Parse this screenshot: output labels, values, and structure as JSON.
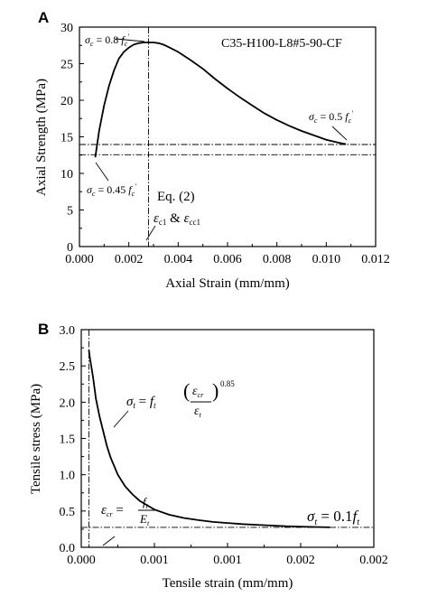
{
  "chart_data": [
    {
      "panel_letter": "A",
      "type": "line",
      "title": "C35-H100-L8#5-90-CF",
      "xlabel": "Axial Strain (mm/mm)",
      "ylabel": "Axial Strength (MPa)",
      "xlim": [
        0,
        0.012
      ],
      "ylim": [
        0,
        30
      ],
      "xticks": [
        "0.000",
        "0.002",
        "0.004",
        "0.006",
        "0.008",
        "0.010",
        "0.012"
      ],
      "yticks": [
        "0",
        "5",
        "10",
        "15",
        "20",
        "25",
        "30"
      ],
      "grid": false,
      "series": [
        {
          "x": [
            0.00064,
            0.0008,
            0.001,
            0.0012,
            0.0014,
            0.0016,
            0.0018,
            0.002,
            0.0022,
            0.0024,
            0.0026,
            0.0028,
            0.003,
            0.0032,
            0.0034,
            0.0036,
            0.004,
            0.0045,
            0.005,
            0.0055,
            0.006,
            0.0065,
            0.007,
            0.0075,
            0.008,
            0.0085,
            0.009,
            0.0095,
            0.01,
            0.0105,
            0.0108
          ],
          "values": [
            12.2,
            15.9,
            19.3,
            22.0,
            24.1,
            25.7,
            26.6,
            27.2,
            27.6,
            27.8,
            27.9,
            27.9,
            27.9,
            27.8,
            27.6,
            27.3,
            26.6,
            25.5,
            24.3,
            22.9,
            21.6,
            20.4,
            19.3,
            18.2,
            17.3,
            16.5,
            15.8,
            15.2,
            14.6,
            14.2,
            14.0
          ]
        }
      ],
      "reference_lines": {
        "vertical_x": 0.0028,
        "horizontal_y": [
          13.95,
          12.55
        ]
      },
      "annotations": {
        "peak": "σc = 0.8 f'c",
        "tail": "σc = 0.5 f'c",
        "start": "σc = 0.45 f'c",
        "equation": "Eq. (2)",
        "strain": "εc1 & εcc1"
      }
    },
    {
      "panel_letter": "B",
      "type": "line",
      "title": "",
      "xlabel": "Tensile strain (mm/mm)",
      "ylabel": "Tensile stress (MPa)",
      "xlim": [
        0,
        0.002
      ],
      "ylim": [
        0,
        3.0
      ],
      "xticks": [
        "0.000",
        "0.001",
        "0.001",
        "0.002",
        "0.002"
      ],
      "yticks": [
        "0.0",
        "0.5",
        "1.0",
        "1.5",
        "2.0",
        "2.5",
        "3.0"
      ],
      "grid": false,
      "series": [
        {
          "x": [
            5.2e-05,
            6e-05,
            8e-05,
            0.0001,
            0.000125,
            0.00015,
            0.000175,
            0.0002,
            0.00025,
            0.0003,
            0.00035,
            0.0004,
            0.0005,
            0.0006,
            0.0007,
            0.0008,
            0.0009,
            0.001,
            0.0011,
            0.0012,
            0.0013,
            0.0014,
            0.0015,
            0.0016,
            0.0017
          ],
          "values": [
            2.72,
            2.6,
            2.35,
            2.05,
            1.8,
            1.6,
            1.4,
            1.24,
            1.0,
            0.84,
            0.73,
            0.64,
            0.52,
            0.45,
            0.405,
            0.375,
            0.35,
            0.335,
            0.32,
            0.31,
            0.3,
            0.29,
            0.285,
            0.28,
            0.275
          ]
        }
      ],
      "reference_lines": {
        "vertical_x": 5.2e-05,
        "horizontal_y": [
          0.275
        ]
      },
      "annotations": {
        "power_law": "σt = ft (εcr / εt)^0.85",
        "crack_strain": "εcr = ft / Et",
        "tail": "σt = 0.1 ft"
      }
    }
  ]
}
